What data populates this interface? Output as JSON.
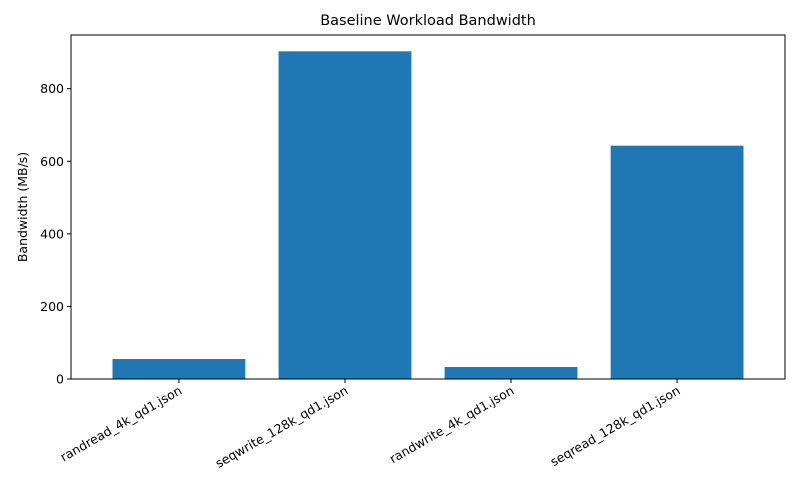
{
  "chart_data": {
    "type": "bar",
    "title": "Baseline Workload Bandwidth",
    "xlabel": "",
    "ylabel": "Bandwidth (MB/s)",
    "categories": [
      "randread_4k_qd1.json",
      "seqwrite_128k_qd1.json",
      "randwrite_4k_qd1.json",
      "seqread_128k_qd1.json"
    ],
    "values": [
      55,
      903,
      33,
      643
    ],
    "ylim": [
      0,
      948
    ],
    "yticks": [
      0,
      200,
      400,
      600,
      800
    ],
    "grid": false,
    "bar_color": "#1f77b4"
  }
}
